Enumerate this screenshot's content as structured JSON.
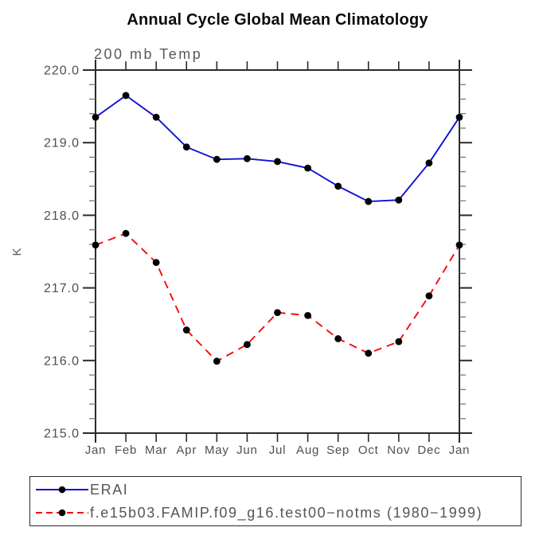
{
  "chart_data": {
    "type": "line",
    "title": "Annual Cycle Global Mean Climatology",
    "subtitle": "200 mb Temp",
    "xlabel": "",
    "ylabel": "K",
    "ylim": [
      215.0,
      220.0
    ],
    "y_major_interval": 1.0,
    "y_minor_interval": 0.2,
    "y_ticks": [
      "220.0",
      "219.0",
      "218.0",
      "217.0",
      "216.0",
      "215.0"
    ],
    "grid": false,
    "legend_position": "bottom-left-box",
    "categories": [
      "Jan",
      "Feb",
      "Mar",
      "Apr",
      "May",
      "Jun",
      "Jul",
      "Aug",
      "Sep",
      "Oct",
      "Nov",
      "Dec",
      "Jan"
    ],
    "series": [
      {
        "name": "ERAI",
        "color": "#0f0fd9",
        "line_style": "solid",
        "marker": "circle",
        "marker_color": "#000000",
        "values": [
          219.35,
          219.65,
          219.35,
          218.94,
          218.77,
          218.78,
          218.74,
          218.65,
          218.4,
          218.19,
          218.21,
          218.72,
          219.35
        ]
      },
      {
        "name": "f.e15b03.FAMIP.f09_g16.test00−notms (1980−1999)",
        "color": "#f40b0b",
        "line_style": "dashed",
        "marker": "circle",
        "marker_color": "#000000",
        "values": [
          217.59,
          217.75,
          217.35,
          216.42,
          215.99,
          216.22,
          216.66,
          216.62,
          216.3,
          216.1,
          216.26,
          216.89,
          217.59
        ]
      }
    ],
    "colors": {
      "axis": "#2b2b2b",
      "labels": "#4f4f4f",
      "title": "#0a0a0a",
      "marker": "#000000"
    }
  }
}
